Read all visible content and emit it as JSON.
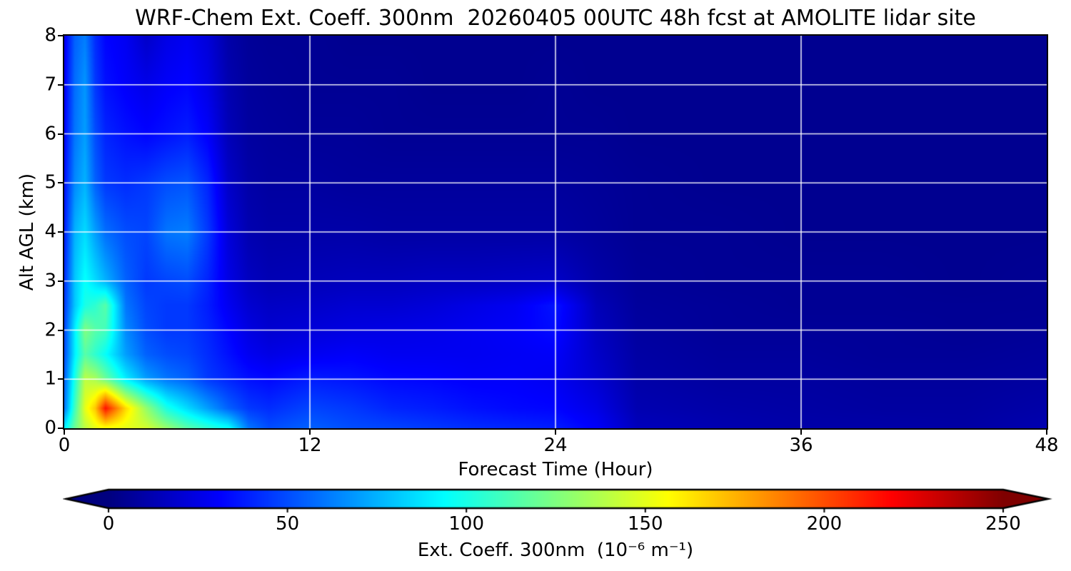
{
  "figure": {
    "title": "WRF-Chem Ext. Coeff. 300nm  20260405 00UTC 48h fcst at AMOLITE lidar site"
  },
  "chart_data": {
    "type": "heatmap",
    "title": "WRF-Chem Ext. Coeff. 300nm  20260405 00UTC 48h fcst at AMOLITE lidar site",
    "xlabel": "Forecast Time (Hour)",
    "ylabel": "Alt AGL (km)",
    "xlim": [
      0,
      48
    ],
    "ylim": [
      0,
      8
    ],
    "x_ticks": [
      0,
      12,
      24,
      36,
      48
    ],
    "y_ticks": [
      0,
      1,
      2,
      3,
      4,
      5,
      6,
      7,
      8
    ],
    "grid": true,
    "grid_color": "#ffffff",
    "x_gridlines": [
      12,
      24,
      36
    ],
    "y_gridlines": [
      1,
      2,
      3,
      4,
      5,
      6,
      7
    ],
    "colormap": "jet",
    "colorbar": {
      "label": "Ext. Coeff. 300nm  (10⁻⁶ m⁻¹)",
      "ticks": [
        0,
        50,
        100,
        150,
        200,
        250
      ],
      "vmin": 0,
      "vmax": 250,
      "extend": "both",
      "under_color": "#00007f",
      "over_color": "#7f0000",
      "orientation": "horizontal"
    },
    "units": "1e-6 per m",
    "x_hours": [
      0,
      0.5,
      1,
      1.5,
      2,
      3,
      4,
      5,
      6,
      7,
      8,
      9,
      10,
      12,
      14,
      16,
      18,
      20,
      22,
      24,
      26,
      28,
      32,
      36,
      40,
      44,
      48
    ],
    "y_km": [
      0,
      0.4,
      1,
      1.5,
      2,
      2.5,
      3,
      4,
      5,
      6,
      7,
      8
    ],
    "values": [
      [
        90,
        120,
        140,
        150,
        155,
        150,
        145,
        130,
        115,
        105,
        95,
        60,
        50,
        55,
        50,
        48,
        45,
        42,
        40,
        38,
        30,
        15,
        12,
        10,
        10,
        9,
        12
      ],
      [
        60,
        110,
        150,
        170,
        215,
        165,
        130,
        100,
        85,
        70,
        55,
        45,
        42,
        48,
        45,
        40,
        38,
        35,
        33,
        32,
        25,
        12,
        10,
        9,
        8,
        8,
        10
      ],
      [
        55,
        100,
        140,
        135,
        120,
        90,
        70,
        60,
        55,
        45,
        40,
        35,
        33,
        38,
        36,
        33,
        32,
        30,
        30,
        28,
        20,
        10,
        8,
        8,
        7,
        7,
        8
      ],
      [
        50,
        90,
        115,
        105,
        95,
        70,
        55,
        50,
        48,
        42,
        35,
        28,
        25,
        28,
        30,
        28,
        28,
        28,
        29,
        30,
        18,
        9,
        7,
        7,
        6,
        6,
        7
      ],
      [
        48,
        90,
        125,
        115,
        110,
        65,
        50,
        45,
        45,
        40,
        32,
        24,
        20,
        22,
        24,
        25,
        26,
        28,
        30,
        34,
        16,
        8,
        6,
        6,
        6,
        5,
        6
      ],
      [
        45,
        80,
        100,
        105,
        115,
        60,
        48,
        45,
        45,
        38,
        28,
        20,
        17,
        18,
        20,
        20,
        22,
        25,
        28,
        36,
        14,
        7,
        6,
        5,
        5,
        5,
        5
      ],
      [
        42,
        80,
        95,
        85,
        75,
        55,
        45,
        48,
        50,
        40,
        25,
        16,
        13,
        14,
        15,
        15,
        16,
        16,
        17,
        18,
        10,
        6,
        5,
        5,
        5,
        4,
        5
      ],
      [
        38,
        75,
        85,
        70,
        58,
        50,
        48,
        60,
        62,
        45,
        22,
        12,
        10,
        10,
        10,
        9,
        9,
        9,
        9,
        9,
        7,
        5,
        5,
        4,
        4,
        4,
        4
      ],
      [
        35,
        65,
        75,
        55,
        45,
        42,
        45,
        50,
        52,
        40,
        18,
        10,
        8,
        8,
        7,
        7,
        7,
        7,
        7,
        7,
        6,
        5,
        4,
        4,
        4,
        4,
        4
      ],
      [
        32,
        60,
        70,
        50,
        40,
        35,
        32,
        35,
        38,
        30,
        14,
        8,
        7,
        6,
        6,
        5,
        5,
        5,
        5,
        5,
        5,
        4,
        4,
        4,
        4,
        4,
        4
      ],
      [
        30,
        58,
        68,
        45,
        35,
        30,
        26,
        30,
        32,
        25,
        12,
        7,
        6,
        5,
        5,
        5,
        4,
        4,
        4,
        5,
        4,
        4,
        4,
        4,
        4,
        4,
        4
      ],
      [
        28,
        55,
        62,
        42,
        32,
        28,
        18,
        25,
        28,
        22,
        10,
        6,
        5,
        5,
        4,
        4,
        4,
        4,
        4,
        4,
        4,
        4,
        4,
        4,
        4,
        4,
        4
      ]
    ]
  }
}
